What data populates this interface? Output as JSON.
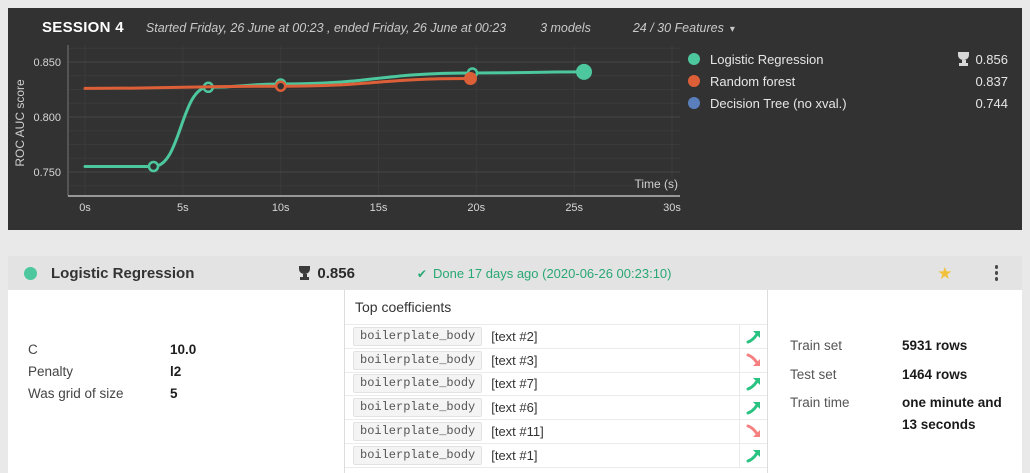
{
  "session": {
    "title": "SESSION 4",
    "subtitle": "Started Friday, 26 June at 00:23 , ended Friday, 26 June at 00:23",
    "models_count": "3 models",
    "features_label": "24 / 30 Features"
  },
  "chart_data": {
    "type": "line",
    "xlabel": "Time (s)",
    "ylabel": "ROC AUC score",
    "x_ticks": [
      "0s",
      "5s",
      "10s",
      "15s",
      "20s",
      "25s",
      "30s"
    ],
    "y_ticks": [
      "0.850",
      "0.800",
      "0.750"
    ],
    "xlim": [
      0,
      30
    ],
    "ylim": [
      0.73,
      0.865
    ],
    "grid": "on",
    "legend_position": "right",
    "series": [
      {
        "name": "Logistic Regression",
        "score": "0.856",
        "winner": true,
        "color": "#4cc79e",
        "points": [
          [
            0,
            0.755
          ],
          [
            3.5,
            0.755
          ],
          [
            6.3,
            0.827
          ],
          [
            10,
            0.83
          ],
          [
            19.8,
            0.84
          ],
          [
            25.5,
            0.841
          ]
        ]
      },
      {
        "name": "Random forest",
        "score": "0.837",
        "winner": false,
        "color": "#dd5f38",
        "points": [
          [
            0,
            0.826
          ],
          [
            10,
            0.828
          ],
          [
            19.7,
            0.835
          ]
        ]
      },
      {
        "name": "Decision Tree (no xval.)",
        "score": "0.744",
        "winner": false,
        "color": "#5b7fbd",
        "points": []
      }
    ]
  },
  "model_card": {
    "name": "Logistic Regression",
    "score": "0.856",
    "status": "Done 17 days ago (2020-06-26 00:23:10)",
    "params": [
      {
        "label": "C",
        "value": "10.0"
      },
      {
        "label": "Penalty",
        "value": "l2"
      },
      {
        "label": "Was grid of size",
        "value": "5"
      }
    ],
    "coefficients": {
      "title": "Top coefficients",
      "rows": [
        {
          "feature": "boilerplate_body",
          "label": "[text #2]",
          "trend": "up"
        },
        {
          "feature": "boilerplate_body",
          "label": "[text #3]",
          "trend": "down"
        },
        {
          "feature": "boilerplate_body",
          "label": "[text #7]",
          "trend": "up"
        },
        {
          "feature": "boilerplate_body",
          "label": "[text #6]",
          "trend": "up"
        },
        {
          "feature": "boilerplate_body",
          "label": "[text #11]",
          "trend": "down"
        },
        {
          "feature": "boilerplate_body",
          "label": "[text #1]",
          "trend": "up"
        }
      ]
    },
    "train_info": [
      {
        "label": "Train set",
        "value": "5931 rows"
      },
      {
        "label": "Test set",
        "value": "1464 rows"
      },
      {
        "label": "Train time",
        "value": "one minute and 13 seconds"
      }
    ]
  },
  "icons": {
    "check": "✔",
    "caret": "▾",
    "star": "★"
  },
  "colors": {
    "panel_bg": "#323232",
    "page_bg": "#e9e9e9",
    "card_header_bg": "#e3e3e3",
    "status_green": "#29a874",
    "star_yellow": "#f2c13b",
    "trend_up": "#29c281",
    "trend_down": "#f5807f"
  }
}
